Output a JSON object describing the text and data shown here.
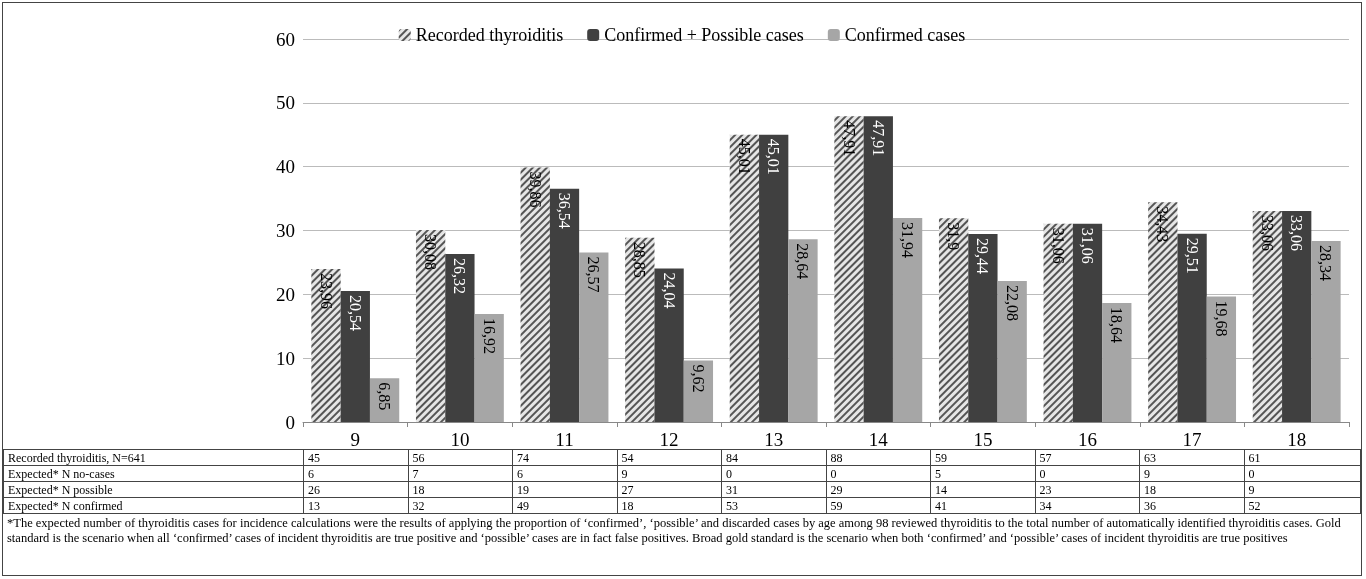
{
  "chart_data": {
    "type": "bar",
    "categories": [
      "9",
      "10",
      "11",
      "12",
      "13",
      "14",
      "15",
      "16",
      "17",
      "18"
    ],
    "series": [
      {
        "name": "Recorded thyroiditis",
        "color": "#e6e6e6",
        "values": [
          23.96,
          30.08,
          39.86,
          28.85,
          45.01,
          47.91,
          31.9,
          31.06,
          34.43,
          33.06
        ],
        "value_labels": [
          "23,96",
          "30,08",
          "39,86",
          "28,85",
          "45,01",
          "47,91",
          "31,9",
          "31,06",
          "34,43",
          "33,06"
        ]
      },
      {
        "name": "Confirmed + Possible cases",
        "color": "#404040",
        "values": [
          20.54,
          26.32,
          36.54,
          24.04,
          45.01,
          47.91,
          29.44,
          31.06,
          29.51,
          33.06
        ],
        "value_labels": [
          "20,54",
          "26,32",
          "36,54",
          "24,04",
          "45,01",
          "47,91",
          "29,44",
          "31,06",
          "29,51",
          "33,06"
        ]
      },
      {
        "name": "Confirmed cases",
        "color": "#a6a6a6",
        "values": [
          6.85,
          16.92,
          26.57,
          9.62,
          28.64,
          31.94,
          22.08,
          18.64,
          19.68,
          28.34
        ],
        "value_labels": [
          "6,85",
          "16,92",
          "26,57",
          "9,62",
          "28,64",
          "31,94",
          "22,08",
          "18,64",
          "19,68",
          "28,34"
        ]
      }
    ],
    "ylim": [
      0,
      60
    ],
    "yticks": [
      0,
      10,
      20,
      30,
      40,
      50,
      60
    ],
    "grid": "y",
    "legend": "top",
    "annotations": [
      "Recorded thyroiditis, N=641",
      "Expected* N no-cases",
      "Expected* N possible",
      "Expected* N confirmed",
      "45",
      "56",
      "74",
      "54",
      "84",
      "88",
      "59",
      "57",
      "63",
      "61",
      "6",
      "7",
      "6",
      "9",
      "0",
      "0",
      "5",
      "0",
      "9",
      "0",
      "26",
      "18",
      "19",
      "27",
      "31",
      "29",
      "14",
      "23",
      "18",
      "9",
      "13",
      "32",
      "49",
      "18",
      "53",
      "59",
      "41",
      "34",
      "36",
      "52",
      "*The expected number of thyroiditis cases for incidence calculations were the results of applying the proportion of ‘confirmed’, ‘possible’ and discarded cases by age among 98 reviewed thyroiditis to the total number of automatically identified thyroiditis cases. Gold standard is the scenario when all ‘confirmed’ cases of incident thyroiditis are true positive and ‘possible’ cases are in fact false positives. Broad gold standard is the scenario when both ‘confirmed’ and ‘possible’ cases of incident thyroiditis are true positives"
    ]
  }
}
